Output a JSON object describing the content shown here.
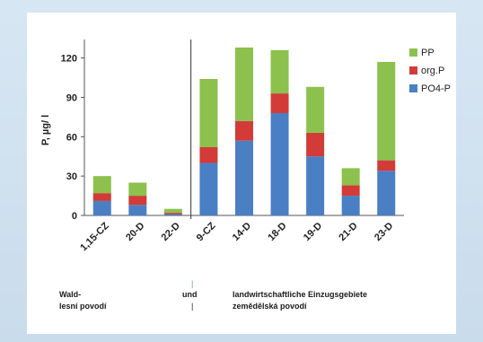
{
  "chart_data": {
    "type": "bar",
    "stacked": true,
    "ylabel": "P, µg/ l",
    "ylim": [
      0,
      130
    ],
    "yticks": [
      0,
      30,
      60,
      90,
      120
    ],
    "categories": [
      "1,15-CZ",
      "20-D",
      "22-D",
      "9-CZ",
      "14-D",
      "18-D",
      "19-D",
      "21-D",
      "23-D"
    ],
    "series": [
      {
        "name": "PO4-P",
        "color": "#4a7fc4",
        "values": [
          11,
          8,
          1,
          40,
          57,
          78,
          45,
          15,
          34
        ]
      },
      {
        "name": "org.P",
        "color": "#d23b38",
        "values": [
          6,
          7,
          1,
          12,
          15,
          15,
          18,
          8,
          8
        ]
      },
      {
        "name": "PP",
        "color": "#8cc14d",
        "values": [
          13,
          10,
          3,
          52,
          56,
          33,
          35,
          13,
          75
        ]
      }
    ],
    "legend_order": [
      "PP",
      "org.P",
      "PO4-P"
    ],
    "legend_position": "right",
    "divider_after_index": 2
  },
  "footer": {
    "left_line1": "Wald-",
    "left_line2": "lesní povodí",
    "mid_line1": "und",
    "mid_line2": "|",
    "mid_bar": "|",
    "right_line1": "landwirtschaftliche Einzugsgebiete",
    "right_line2": "zemědělská povodí"
  }
}
